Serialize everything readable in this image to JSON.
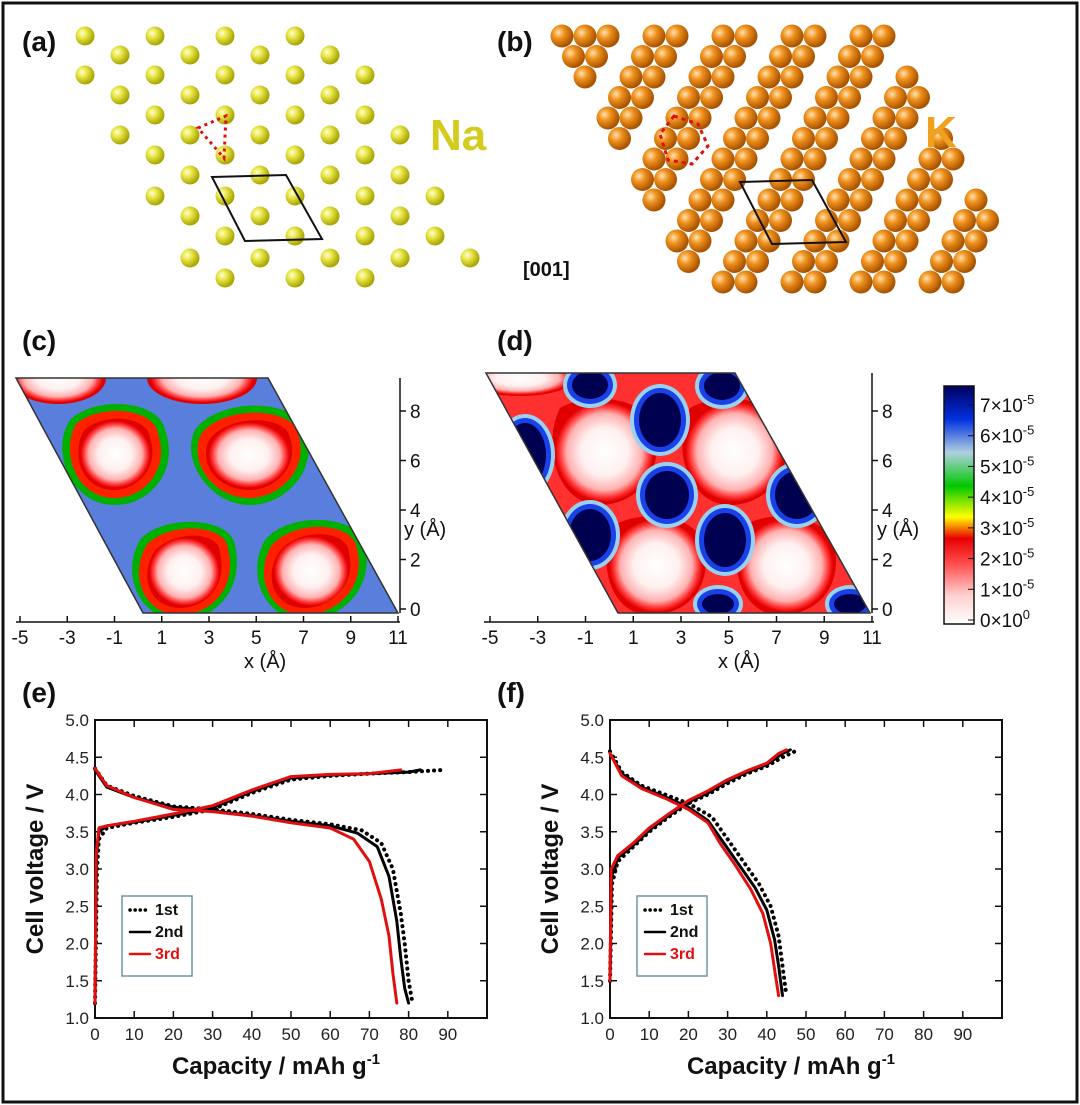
{
  "panels": {
    "a": {
      "label": "(a)",
      "element": "Na",
      "element_color": "#d4cc1c"
    },
    "b": {
      "label": "(b)",
      "element": "K",
      "element_color": "#f0a21e",
      "direction": "[001]"
    },
    "c": {
      "label": "(c)"
    },
    "d": {
      "label": "(d)"
    },
    "e": {
      "label": "(e)"
    },
    "f": {
      "label": "(f)"
    }
  },
  "density_maps": {
    "x_axis_label": "x (Å)",
    "y_axis_label": "y (Å)",
    "x_ticks": [
      "-5",
      "-3",
      "-1",
      "1",
      "3",
      "5",
      "7",
      "9",
      "11"
    ],
    "y_ticks": [
      "0",
      "2",
      "4",
      "6",
      "8"
    ],
    "colorbar": {
      "ticks": [
        {
          "m": "7",
          "e": "-5"
        },
        {
          "m": "6",
          "e": "-5"
        },
        {
          "m": "5",
          "e": "-5"
        },
        {
          "m": "4",
          "e": "-5"
        },
        {
          "m": "3",
          "e": "-5"
        },
        {
          "m": "2",
          "e": "-5"
        },
        {
          "m": "1",
          "e": "-5"
        },
        {
          "m": "0",
          "e": "0"
        }
      ],
      "colors": [
        "#ffffff",
        "#ffd0d0",
        "#ff5050",
        "#e80000",
        "#ffff00",
        "#00c800",
        "#b0d0e0",
        "#0030e0",
        "#000060"
      ]
    }
  },
  "chart_data": [
    {
      "type": "line",
      "panel": "(e)",
      "xlabel": "Capacity / mAh g",
      "xlabel_sup": "-1",
      "ylabel": "Cell voltage / V",
      "xlim": [
        0,
        100
      ],
      "ylim": [
        1.0,
        5.0
      ],
      "x_ticks": [
        0,
        10,
        20,
        30,
        40,
        50,
        60,
        70,
        80,
        90
      ],
      "y_ticks": [
        1.0,
        1.5,
        2.0,
        2.5,
        3.0,
        3.5,
        4.0,
        4.5,
        5.0
      ],
      "legend": [
        "1st",
        "2nd",
        "3rd"
      ],
      "series": [
        {
          "name": "1st",
          "style": "dotted",
          "color": "#000000",
          "branches": [
            [
              [
                0,
                1.2
              ],
              [
                0.5,
                3.0
              ],
              [
                1,
                3.4
              ],
              [
                3,
                3.55
              ],
              [
                10,
                3.62
              ],
              [
                20,
                3.7
              ],
              [
                30,
                3.8
              ],
              [
                40,
                4.02
              ],
              [
                50,
                4.2
              ],
              [
                60,
                4.25
              ],
              [
                70,
                4.28
              ],
              [
                80,
                4.3
              ],
              [
                89,
                4.33
              ]
            ],
            [
              [
                0,
                4.35
              ],
              [
                3,
                4.12
              ],
              [
                10,
                3.98
              ],
              [
                20,
                3.84
              ],
              [
                30,
                3.8
              ],
              [
                40,
                3.74
              ],
              [
                50,
                3.66
              ],
              [
                60,
                3.6
              ],
              [
                68,
                3.52
              ],
              [
                73,
                3.35
              ],
              [
                76,
                3.0
              ],
              [
                78,
                2.4
              ],
              [
                79,
                2.0
              ],
              [
                80,
                1.5
              ],
              [
                81,
                1.2
              ]
            ]
          ]
        },
        {
          "name": "2nd",
          "style": "solid",
          "color": "#000000",
          "branches": [
            [
              [
                0,
                1.2
              ],
              [
                0.4,
                3.2
              ],
              [
                1,
                3.5
              ],
              [
                3,
                3.58
              ],
              [
                10,
                3.63
              ],
              [
                20,
                3.72
              ],
              [
                30,
                3.82
              ],
              [
                40,
                4.04
              ],
              [
                50,
                4.22
              ],
              [
                60,
                4.26
              ],
              [
                70,
                4.28
              ],
              [
                80,
                4.3
              ],
              [
                83,
                4.33
              ]
            ],
            [
              [
                0,
                4.33
              ],
              [
                3,
                4.1
              ],
              [
                10,
                3.96
              ],
              [
                20,
                3.83
              ],
              [
                30,
                3.78
              ],
              [
                40,
                3.72
              ],
              [
                50,
                3.64
              ],
              [
                60,
                3.58
              ],
              [
                67,
                3.48
              ],
              [
                72,
                3.3
              ],
              [
                75,
                2.9
              ],
              [
                77,
                2.3
              ],
              [
                78,
                1.8
              ],
              [
                79,
                1.4
              ],
              [
                80,
                1.2
              ]
            ]
          ]
        },
        {
          "name": "3rd",
          "style": "solid",
          "color": "#e01010",
          "branches": [
            [
              [
                0,
                1.2
              ],
              [
                0.3,
                3.2
              ],
              [
                1,
                3.55
              ],
              [
                3,
                3.58
              ],
              [
                10,
                3.64
              ],
              [
                20,
                3.74
              ],
              [
                30,
                3.85
              ],
              [
                40,
                4.06
              ],
              [
                50,
                4.24
              ],
              [
                60,
                4.27
              ],
              [
                70,
                4.28
              ],
              [
                78,
                4.33
              ]
            ],
            [
              [
                0,
                4.35
              ],
              [
                3,
                4.12
              ],
              [
                10,
                3.96
              ],
              [
                20,
                3.8
              ],
              [
                30,
                3.77
              ],
              [
                40,
                3.71
              ],
              [
                50,
                3.62
              ],
              [
                60,
                3.55
              ],
              [
                66,
                3.4
              ],
              [
                70,
                3.1
              ],
              [
                73,
                2.6
              ],
              [
                75,
                2.1
              ],
              [
                76,
                1.6
              ],
              [
                77,
                1.2
              ]
            ]
          ]
        }
      ]
    },
    {
      "type": "line",
      "panel": "(f)",
      "xlabel": "Capacity / mAh g",
      "xlabel_sup": "-1",
      "ylabel": "Cell voltage / V",
      "xlim": [
        0,
        100
      ],
      "ylim": [
        1.0,
        5.0
      ],
      "x_ticks": [
        0,
        10,
        20,
        30,
        40,
        50,
        60,
        70,
        80,
        90
      ],
      "y_ticks": [
        1.0,
        1.5,
        2.0,
        2.5,
        3.0,
        3.5,
        4.0,
        4.5,
        5.0
      ],
      "legend": [
        "1st",
        "2nd",
        "3rd"
      ],
      "series": [
        {
          "name": "1st",
          "style": "dotted",
          "color": "#000000",
          "branches": [
            [
              [
                0,
                1.5
              ],
              [
                0.5,
                2.8
              ],
              [
                2,
                3.1
              ],
              [
                6,
                3.3
              ],
              [
                10,
                3.5
              ],
              [
                15,
                3.7
              ],
              [
                20,
                3.88
              ],
              [
                25,
                4.0
              ],
              [
                30,
                4.15
              ],
              [
                35,
                4.28
              ],
              [
                40,
                4.38
              ],
              [
                44,
                4.5
              ],
              [
                48,
                4.6
              ]
            ],
            [
              [
                0,
                4.58
              ],
              [
                3,
                4.3
              ],
              [
                8,
                4.12
              ],
              [
                14,
                4.0
              ],
              [
                20,
                3.88
              ],
              [
                26,
                3.7
              ],
              [
                30,
                3.4
              ],
              [
                34,
                3.1
              ],
              [
                38,
                2.8
              ],
              [
                41,
                2.5
              ],
              [
                43,
                2.1
              ],
              [
                44,
                1.7
              ],
              [
                45,
                1.3
              ]
            ]
          ]
        },
        {
          "name": "2nd",
          "style": "solid",
          "color": "#000000",
          "branches": [
            [
              [
                0,
                1.5
              ],
              [
                0.4,
                2.9
              ],
              [
                2,
                3.15
              ],
              [
                6,
                3.32
              ],
              [
                10,
                3.52
              ],
              [
                15,
                3.72
              ],
              [
                20,
                3.9
              ],
              [
                25,
                4.02
              ],
              [
                30,
                4.18
              ],
              [
                35,
                4.3
              ],
              [
                40,
                4.4
              ],
              [
                44,
                4.55
              ],
              [
                46,
                4.6
              ]
            ],
            [
              [
                0,
                4.55
              ],
              [
                3,
                4.28
              ],
              [
                8,
                4.1
              ],
              [
                14,
                3.97
              ],
              [
                20,
                3.83
              ],
              [
                25,
                3.65
              ],
              [
                29,
                3.35
              ],
              [
                33,
                3.05
              ],
              [
                37,
                2.75
              ],
              [
                40,
                2.45
              ],
              [
                42,
                2.05
              ],
              [
                43,
                1.7
              ],
              [
                44,
                1.3
              ]
            ]
          ]
        },
        {
          "name": "3rd",
          "style": "solid",
          "color": "#e01010",
          "branches": [
            [
              [
                0,
                1.5
              ],
              [
                0.3,
                3.0
              ],
              [
                2,
                3.18
              ],
              [
                6,
                3.35
              ],
              [
                10,
                3.55
              ],
              [
                15,
                3.74
              ],
              [
                20,
                3.92
              ],
              [
                25,
                4.05
              ],
              [
                30,
                4.2
              ],
              [
                35,
                4.32
              ],
              [
                40,
                4.42
              ],
              [
                43,
                4.55
              ],
              [
                45,
                4.6
              ]
            ],
            [
              [
                0,
                4.55
              ],
              [
                3,
                4.25
              ],
              [
                8,
                4.08
              ],
              [
                14,
                3.95
              ],
              [
                20,
                3.8
              ],
              [
                25,
                3.62
              ],
              [
                28,
                3.35
              ],
              [
                32,
                3.05
              ],
              [
                36,
                2.72
              ],
              [
                39,
                2.4
              ],
              [
                41,
                2.0
              ],
              [
                42,
                1.65
              ],
              [
                43,
                1.3
              ]
            ]
          ]
        }
      ]
    }
  ]
}
